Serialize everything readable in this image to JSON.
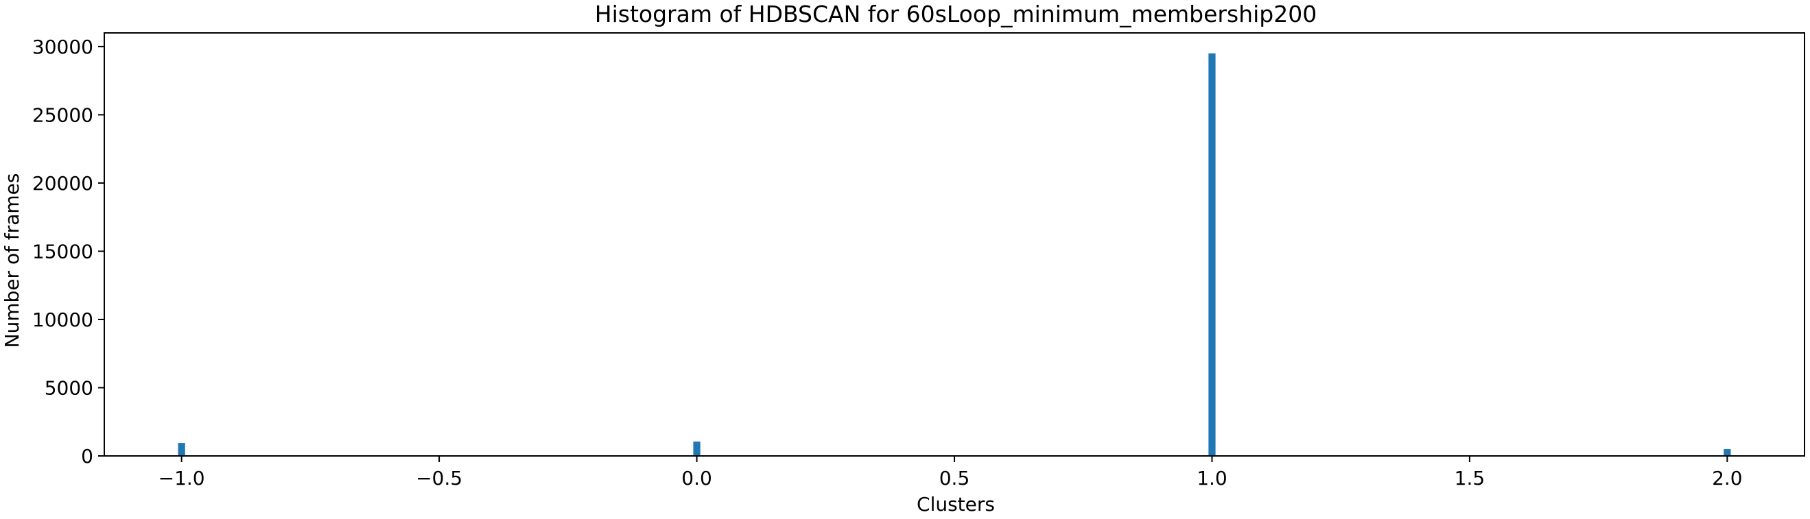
{
  "chart_data": {
    "type": "bar",
    "title": "Histogram of HDBSCAN for 60sLoop_minimum_membership200",
    "xlabel": "Clusters",
    "ylabel": "Number of frames",
    "xlim": [
      -1.15,
      2.15
    ],
    "ylim": [
      0,
      31000
    ],
    "xticks": [
      -1.0,
      -0.5,
      0.0,
      0.5,
      1.0,
      1.5,
      2.0
    ],
    "xtick_labels": [
      "−1.0",
      "−0.5",
      "0.0",
      "0.5",
      "1.0",
      "1.5",
      "2.0"
    ],
    "yticks": [
      0,
      5000,
      10000,
      15000,
      20000,
      25000,
      30000
    ],
    "ytick_labels": [
      "0",
      "5000",
      "10000",
      "15000",
      "20000",
      "25000",
      "30000"
    ],
    "bin_width": 0.0136,
    "bars": [
      {
        "x": -1.0,
        "value": 950
      },
      {
        "x": 0.0,
        "value": 1050
      },
      {
        "x": 1.0,
        "value": 29500
      },
      {
        "x": 2.0,
        "value": 500
      }
    ],
    "grid": false,
    "colors": {
      "bar": "#1f77b4",
      "axis": "#000000"
    }
  }
}
